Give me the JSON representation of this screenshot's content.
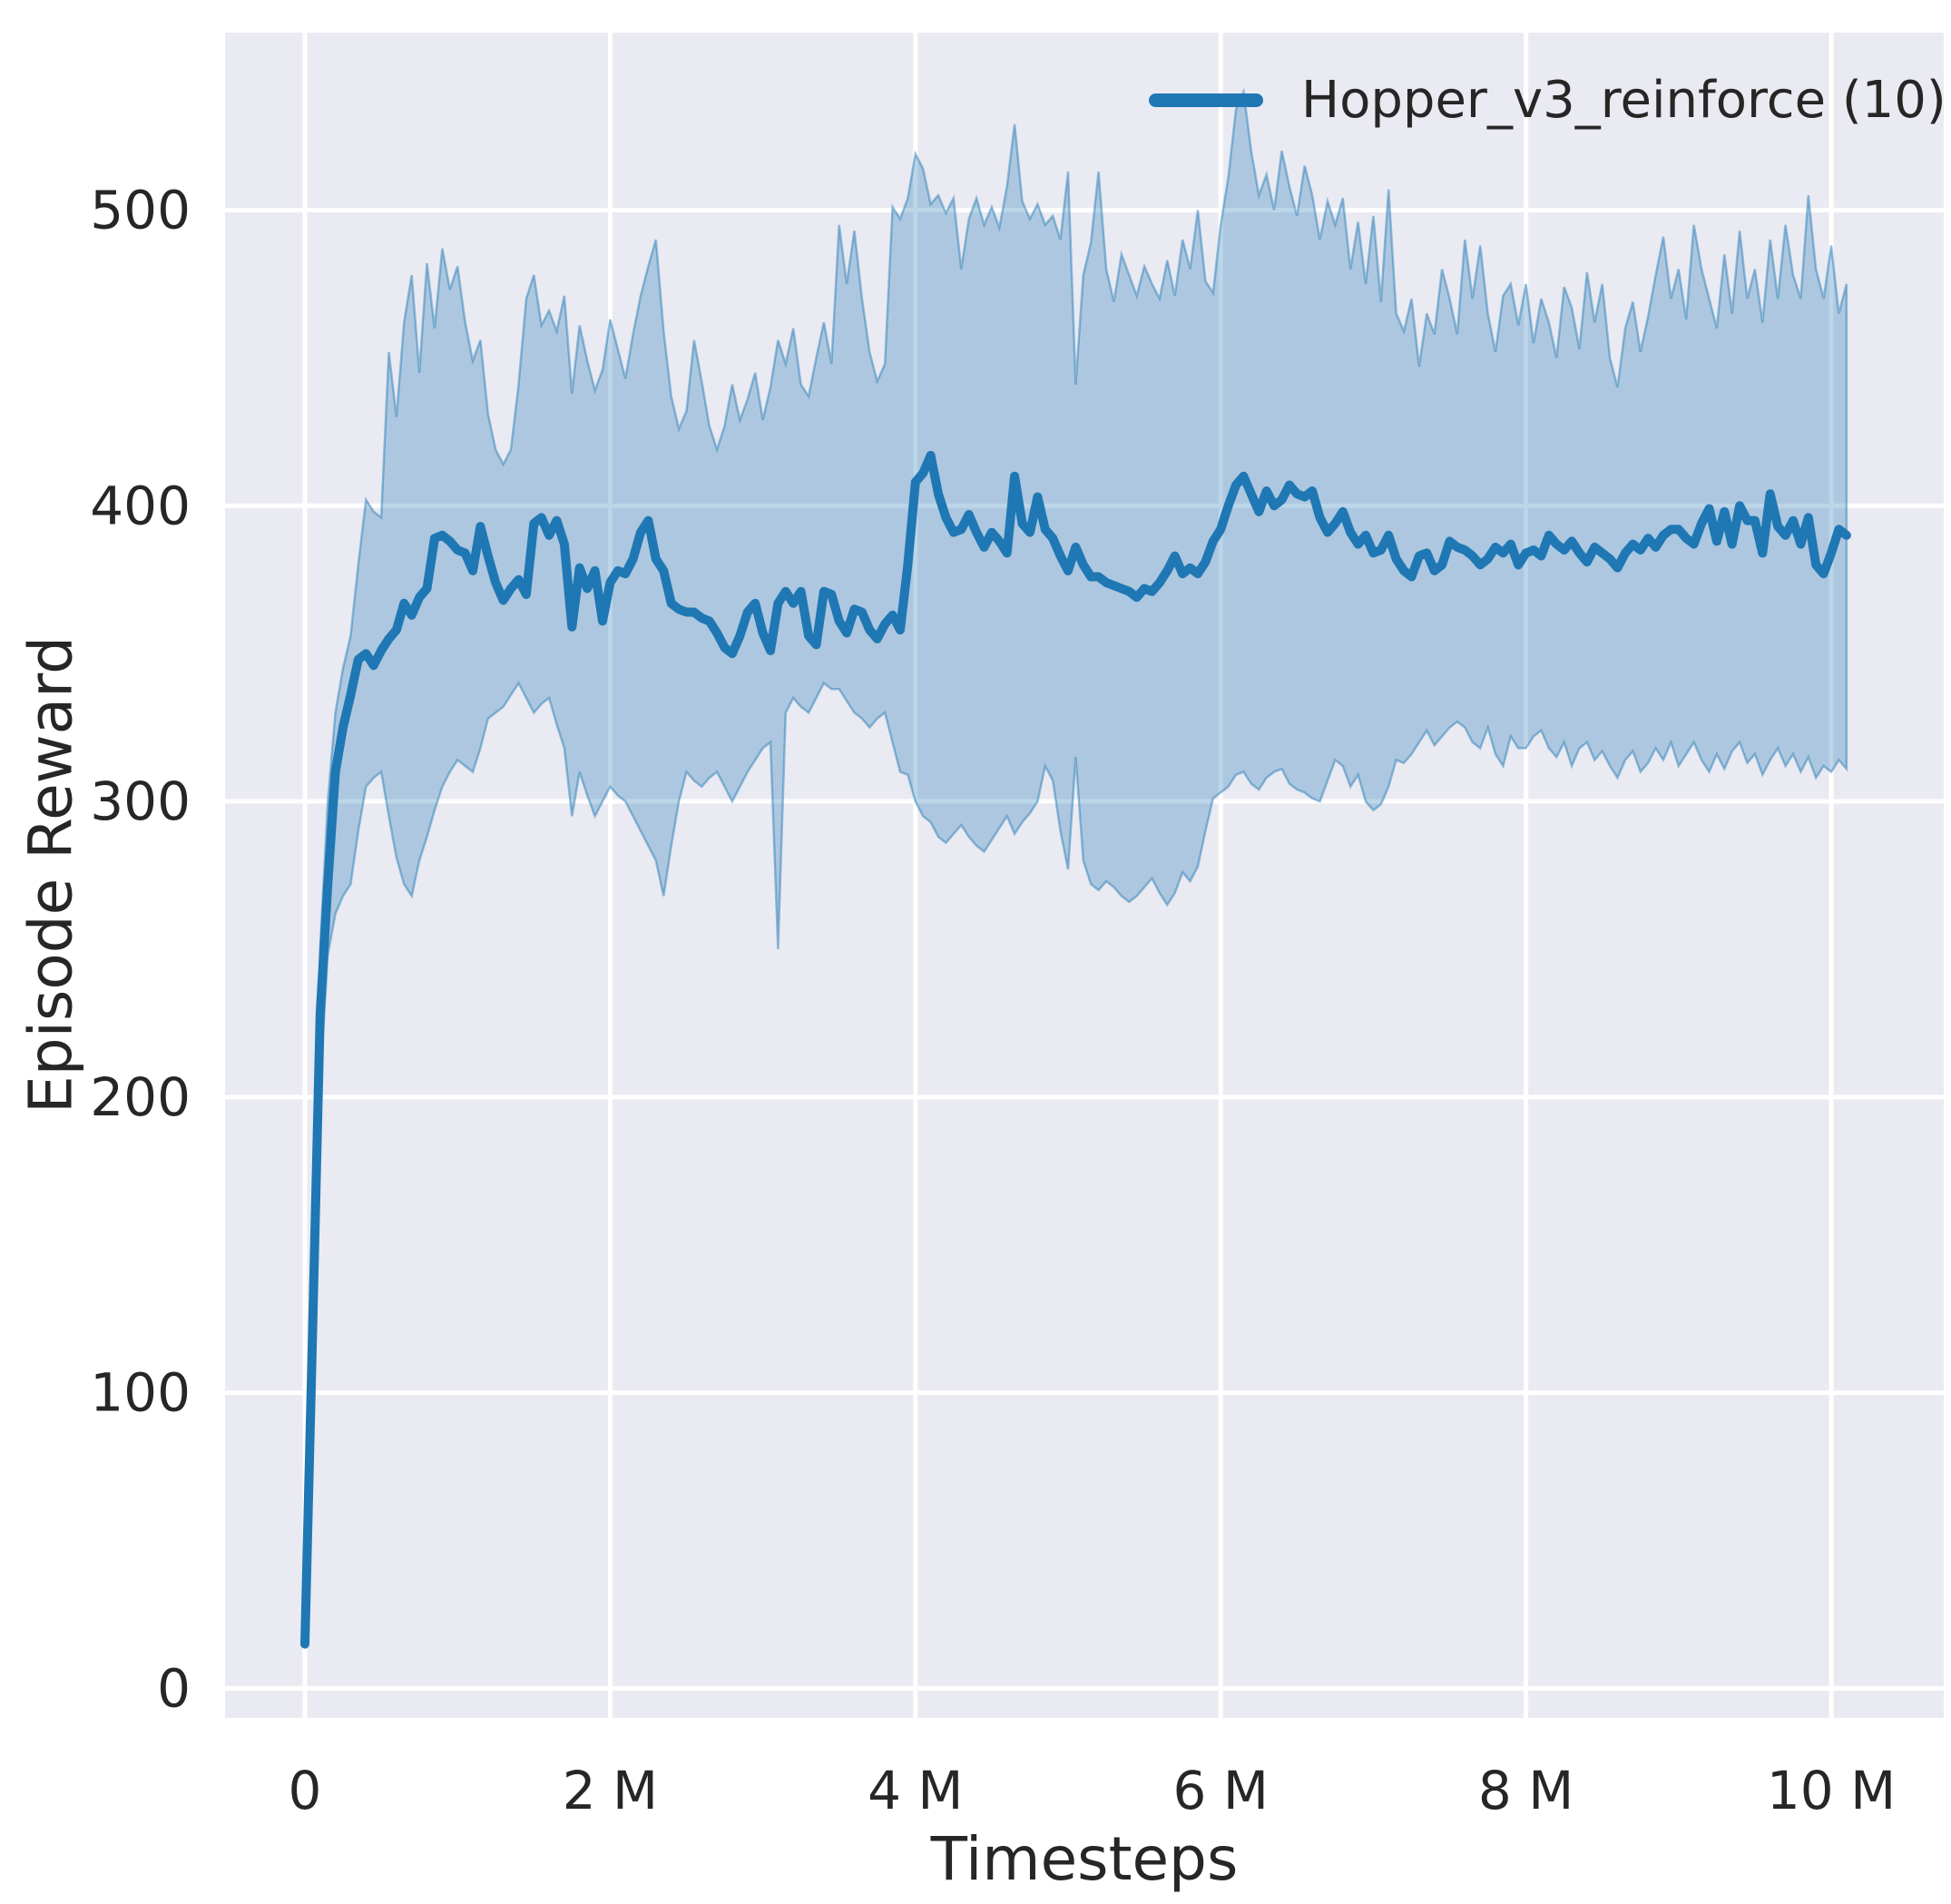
{
  "chart_data": {
    "type": "line",
    "title": "",
    "xlabel": "Timesteps",
    "ylabel": "Episode Reward",
    "grid": true,
    "legend_position": "upper right",
    "legend": [
      {
        "label": "Hopper_v3_reinforce (10)",
        "color": "#1f77b4"
      }
    ],
    "style": {
      "figure_bg": "#ffffff",
      "axes_bg": "#eaeaf2",
      "grid_color": "#ffffff",
      "text_color": "#262626",
      "accent": "#1f77b4",
      "band_alpha": 0.3,
      "band_edge_alpha": 0.45
    },
    "xlim": [
      -523000,
      10737000
    ],
    "ylim": [
      -10,
      560
    ],
    "x_ticks": [
      {
        "value": 0,
        "label": "0"
      },
      {
        "value": 2000000,
        "label": "2 M"
      },
      {
        "value": 4000000,
        "label": "4 M"
      },
      {
        "value": 6000000,
        "label": "6 M"
      },
      {
        "value": 8000000,
        "label": "8 M"
      },
      {
        "value": 10000000,
        "label": "10 M"
      }
    ],
    "y_ticks": [
      {
        "value": 0,
        "label": "0"
      },
      {
        "value": 100,
        "label": "100"
      },
      {
        "value": 200,
        "label": "200"
      },
      {
        "value": 300,
        "label": "300"
      },
      {
        "value": 400,
        "label": "400"
      },
      {
        "value": 500,
        "label": "500"
      }
    ],
    "series": [
      {
        "name": "Hopper_v3_reinforce (10)",
        "color": "#1f77b4",
        "x_start": 0,
        "x_step": 50000,
        "mean": [
          15,
          120,
          228,
          272,
          310,
          325,
          336,
          348,
          350,
          346,
          351,
          355,
          358,
          367,
          363,
          369,
          372,
          389,
          390,
          388,
          385,
          384,
          378,
          393,
          383,
          374,
          368,
          372,
          375,
          370,
          394,
          396,
          390,
          395,
          387,
          359,
          379,
          372,
          378,
          361,
          374,
          378,
          377,
          382,
          391,
          395,
          382,
          378,
          367,
          365,
          364,
          364,
          362,
          361,
          357,
          352,
          350,
          356,
          364,
          367,
          357,
          351,
          367,
          371,
          367,
          371,
          356,
          353,
          371,
          370,
          361,
          357,
          365,
          364,
          358,
          355,
          360,
          363,
          358,
          380,
          408,
          411,
          417,
          404,
          396,
          391,
          392,
          397,
          391,
          386,
          391,
          388,
          384,
          410,
          394,
          391,
          403,
          392,
          389,
          383,
          378,
          386,
          380,
          376,
          376,
          374,
          373,
          372,
          371,
          369,
          372,
          371,
          374,
          378,
          383,
          377,
          379,
          377,
          381,
          388,
          392,
          400,
          407,
          410,
          404,
          398,
          405,
          400,
          402,
          407,
          404,
          403,
          405,
          396,
          391,
          394,
          398,
          391,
          387,
          390,
          384,
          385,
          390,
          382,
          378,
          376,
          383,
          384,
          378,
          380,
          388,
          386,
          385,
          383,
          380,
          382,
          386,
          384,
          387,
          380,
          384,
          385,
          383,
          390,
          387,
          385,
          388,
          384,
          381,
          386,
          384,
          382,
          379,
          384,
          387,
          385,
          389,
          386,
          390,
          392,
          392,
          389,
          387,
          394,
          399,
          388,
          398,
          387,
          400,
          395,
          395,
          384,
          404,
          393,
          390,
          395,
          387,
          396,
          380,
          377,
          384,
          392,
          390
        ],
        "band_upper": [
          15,
          130,
          250,
          300,
          330,
          345,
          356,
          380,
          402,
          398,
          396,
          452,
          430,
          462,
          478,
          445,
          482,
          460,
          487,
          473,
          481,
          462,
          449,
          456,
          431,
          419,
          414,
          419,
          441,
          470,
          478,
          461,
          466,
          459,
          471,
          438,
          461,
          449,
          439,
          446,
          463,
          453,
          443,
          458,
          471,
          481,
          490,
          459,
          437,
          426,
          432,
          456,
          442,
          427,
          419,
          427,
          441,
          429,
          436,
          445,
          429,
          440,
          456,
          448,
          460,
          441,
          437,
          450,
          462,
          448,
          495,
          475,
          493,
          470,
          452,
          442,
          448,
          501,
          497,
          504,
          519,
          514,
          502,
          505,
          499,
          504,
          480,
          497,
          504,
          495,
          501,
          494,
          508,
          529,
          503,
          497,
          502,
          495,
          498,
          490,
          513,
          441,
          478,
          489,
          513,
          480,
          469,
          485,
          478,
          471,
          481,
          475,
          470,
          483,
          471,
          490,
          480,
          500,
          476,
          472,
          495,
          511,
          534,
          540,
          520,
          505,
          512,
          500,
          520,
          508,
          498,
          515,
          505,
          490,
          503,
          495,
          504,
          480,
          496,
          475,
          498,
          469,
          507,
          465,
          459,
          470,
          447,
          465,
          458,
          480,
          470,
          458,
          490,
          470,
          488,
          465,
          452,
          471,
          475,
          461,
          475,
          455,
          470,
          462,
          450,
          474,
          467,
          453,
          479,
          462,
          475,
          450,
          440,
          460,
          469,
          452,
          464,
          478,
          491,
          470,
          480,
          463,
          495,
          480,
          470,
          460,
          485,
          465,
          493,
          470,
          480,
          462,
          490,
          470,
          495,
          478,
          470,
          505,
          480,
          470,
          488,
          465,
          475
        ],
        "band_lower": [
          15,
          110,
          205,
          248,
          262,
          268,
          272,
          290,
          305,
          308,
          310,
          295,
          281,
          272,
          268,
          280,
          288,
          297,
          305,
          310,
          314,
          312,
          310,
          318,
          328,
          330,
          332,
          336,
          340,
          335,
          330,
          333,
          335,
          326,
          318,
          295,
          310,
          302,
          295,
          300,
          305,
          302,
          300,
          295,
          290,
          285,
          280,
          268,
          285,
          300,
          310,
          307,
          305,
          308,
          310,
          305,
          300,
          305,
          310,
          314,
          318,
          320,
          250,
          330,
          335,
          332,
          330,
          335,
          340,
          338,
          338,
          334,
          330,
          328,
          325,
          328,
          330,
          320,
          310,
          309,
          300,
          295,
          293,
          288,
          286,
          289,
          292,
          288,
          285,
          283,
          287,
          291,
          295,
          289,
          293,
          296,
          300,
          312,
          307,
          290,
          277,
          315,
          280,
          272,
          270,
          273,
          271,
          268,
          266,
          268,
          271,
          274,
          269,
          265,
          269,
          276,
          273,
          278,
          290,
          301,
          303,
          305,
          309,
          310,
          306,
          304,
          308,
          310,
          311,
          306,
          304,
          303,
          301,
          300,
          307,
          314,
          312,
          305,
          309,
          300,
          297,
          299,
          305,
          314,
          313,
          316,
          320,
          324,
          319,
          322,
          325,
          327,
          325,
          320,
          318,
          325,
          316,
          312,
          322,
          318,
          318,
          322,
          324,
          318,
          315,
          320,
          312,
          318,
          320,
          314,
          317,
          312,
          308,
          314,
          317,
          310,
          313,
          318,
          314,
          320,
          312,
          316,
          320,
          314,
          310,
          316,
          311,
          317,
          320,
          313,
          316,
          309,
          314,
          318,
          312,
          316,
          310,
          315,
          308,
          312,
          310,
          314,
          311
        ]
      }
    ]
  }
}
